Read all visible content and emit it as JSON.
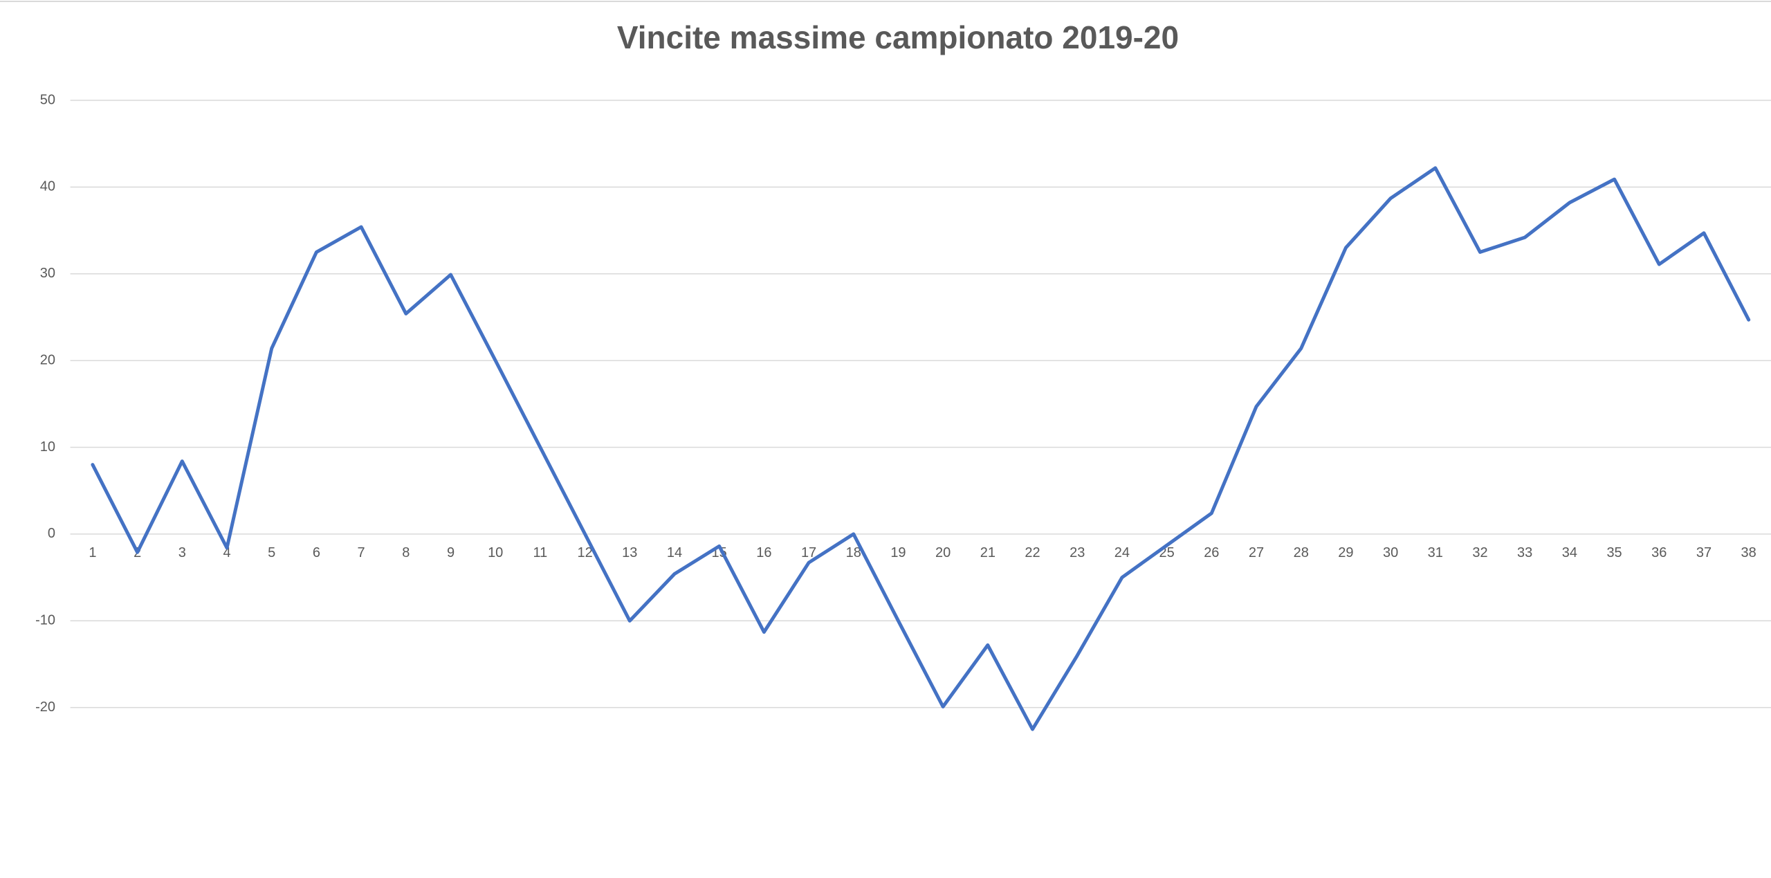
{
  "chart_data": {
    "type": "line",
    "title": "Vincite massime campionato 2019-20",
    "categories": [
      "1",
      "2",
      "3",
      "4",
      "5",
      "6",
      "7",
      "8",
      "9",
      "10",
      "11",
      "12",
      "13",
      "14",
      "15",
      "16",
      "17",
      "18",
      "19",
      "20",
      "21",
      "22",
      "23",
      "24",
      "25",
      "26",
      "27",
      "28",
      "29",
      "30",
      "31",
      "32",
      "33",
      "34",
      "35",
      "36",
      "37",
      "38"
    ],
    "series": [
      {
        "color": "#4472c4",
        "values": [
          8,
          -2.1,
          8.4,
          -1.6,
          21.4,
          32.5,
          35.4,
          25.4,
          29.9,
          20,
          10,
          0,
          -10,
          -4.6,
          -1.4,
          -11.3,
          -3.3,
          0,
          -10,
          -19.9,
          -12.8,
          -22.5,
          -14,
          -5,
          -1.3,
          2.4,
          14.7,
          21.4,
          33,
          38.7,
          42.2,
          32.5,
          34.2,
          38.2,
          40.9,
          31.1,
          34.7,
          24.7
        ]
      }
    ],
    "ylim": [
      -30,
      50
    ],
    "yticks": [
      -20,
      -10,
      0,
      10,
      20,
      30,
      40,
      50
    ],
    "grid": true
  }
}
